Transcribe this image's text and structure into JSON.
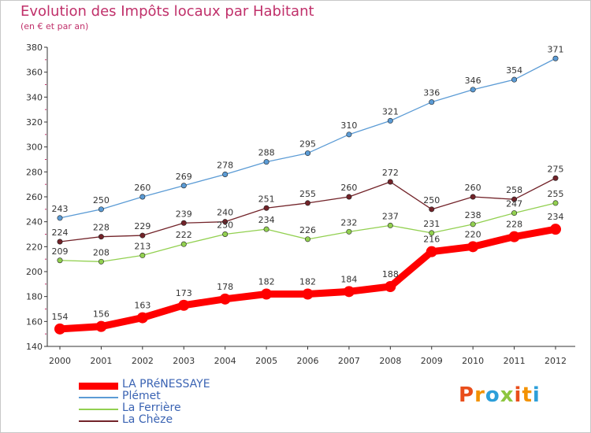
{
  "header": {
    "title": "Evolution des Impôts locaux par Habitant",
    "subtitle": "(en € et par an)"
  },
  "brand": {
    "logo_text": "Proxiti",
    "letter_colors": [
      "#e94e1b",
      "#f39200",
      "#2d9fd9",
      "#8dc63f",
      "#e94e1b",
      "#f39200",
      "#2d9fd9"
    ]
  },
  "chart_data": {
    "type": "line",
    "title": "Evolution des Impôts locaux par Habitant",
    "subtitle": "(en € et par an)",
    "xlabel": "",
    "ylabel": "",
    "categories": [
      "2000",
      "2001",
      "2002",
      "2003",
      "2004",
      "2005",
      "2006",
      "2007",
      "2008",
      "2009",
      "2010",
      "2011",
      "2012"
    ],
    "ylim": [
      140,
      380
    ],
    "yticks": [
      140,
      160,
      180,
      200,
      220,
      240,
      260,
      280,
      300,
      320,
      340,
      360,
      380
    ],
    "grid": false,
    "legend_position": "bottom-left",
    "series": [
      {
        "name": "Plémet",
        "color": "#5b9bd5",
        "emphasis": false,
        "values": [
          243,
          250,
          260,
          269,
          278,
          288,
          295,
          310,
          321,
          336,
          346,
          354,
          371
        ]
      },
      {
        "name": "La Chèze",
        "color": "#722329",
        "emphasis": false,
        "values": [
          224,
          228,
          229,
          239,
          240,
          251,
          255,
          260,
          272,
          250,
          260,
          258,
          275
        ]
      },
      {
        "name": "La Ferrière",
        "color": "#92d050",
        "emphasis": false,
        "values": [
          209,
          208,
          213,
          222,
          230,
          234,
          226,
          232,
          237,
          231,
          238,
          247,
          255
        ]
      },
      {
        "name": "LA PRéNESSAYE",
        "color": "#ff0000",
        "emphasis": true,
        "values": [
          154,
          156,
          163,
          173,
          178,
          182,
          182,
          184,
          188,
          216,
          220,
          228,
          234
        ]
      }
    ],
    "legend_order": [
      "LA PRéNESSAYE",
      "Plémet",
      "La Ferrière",
      "La Chèze"
    ]
  }
}
